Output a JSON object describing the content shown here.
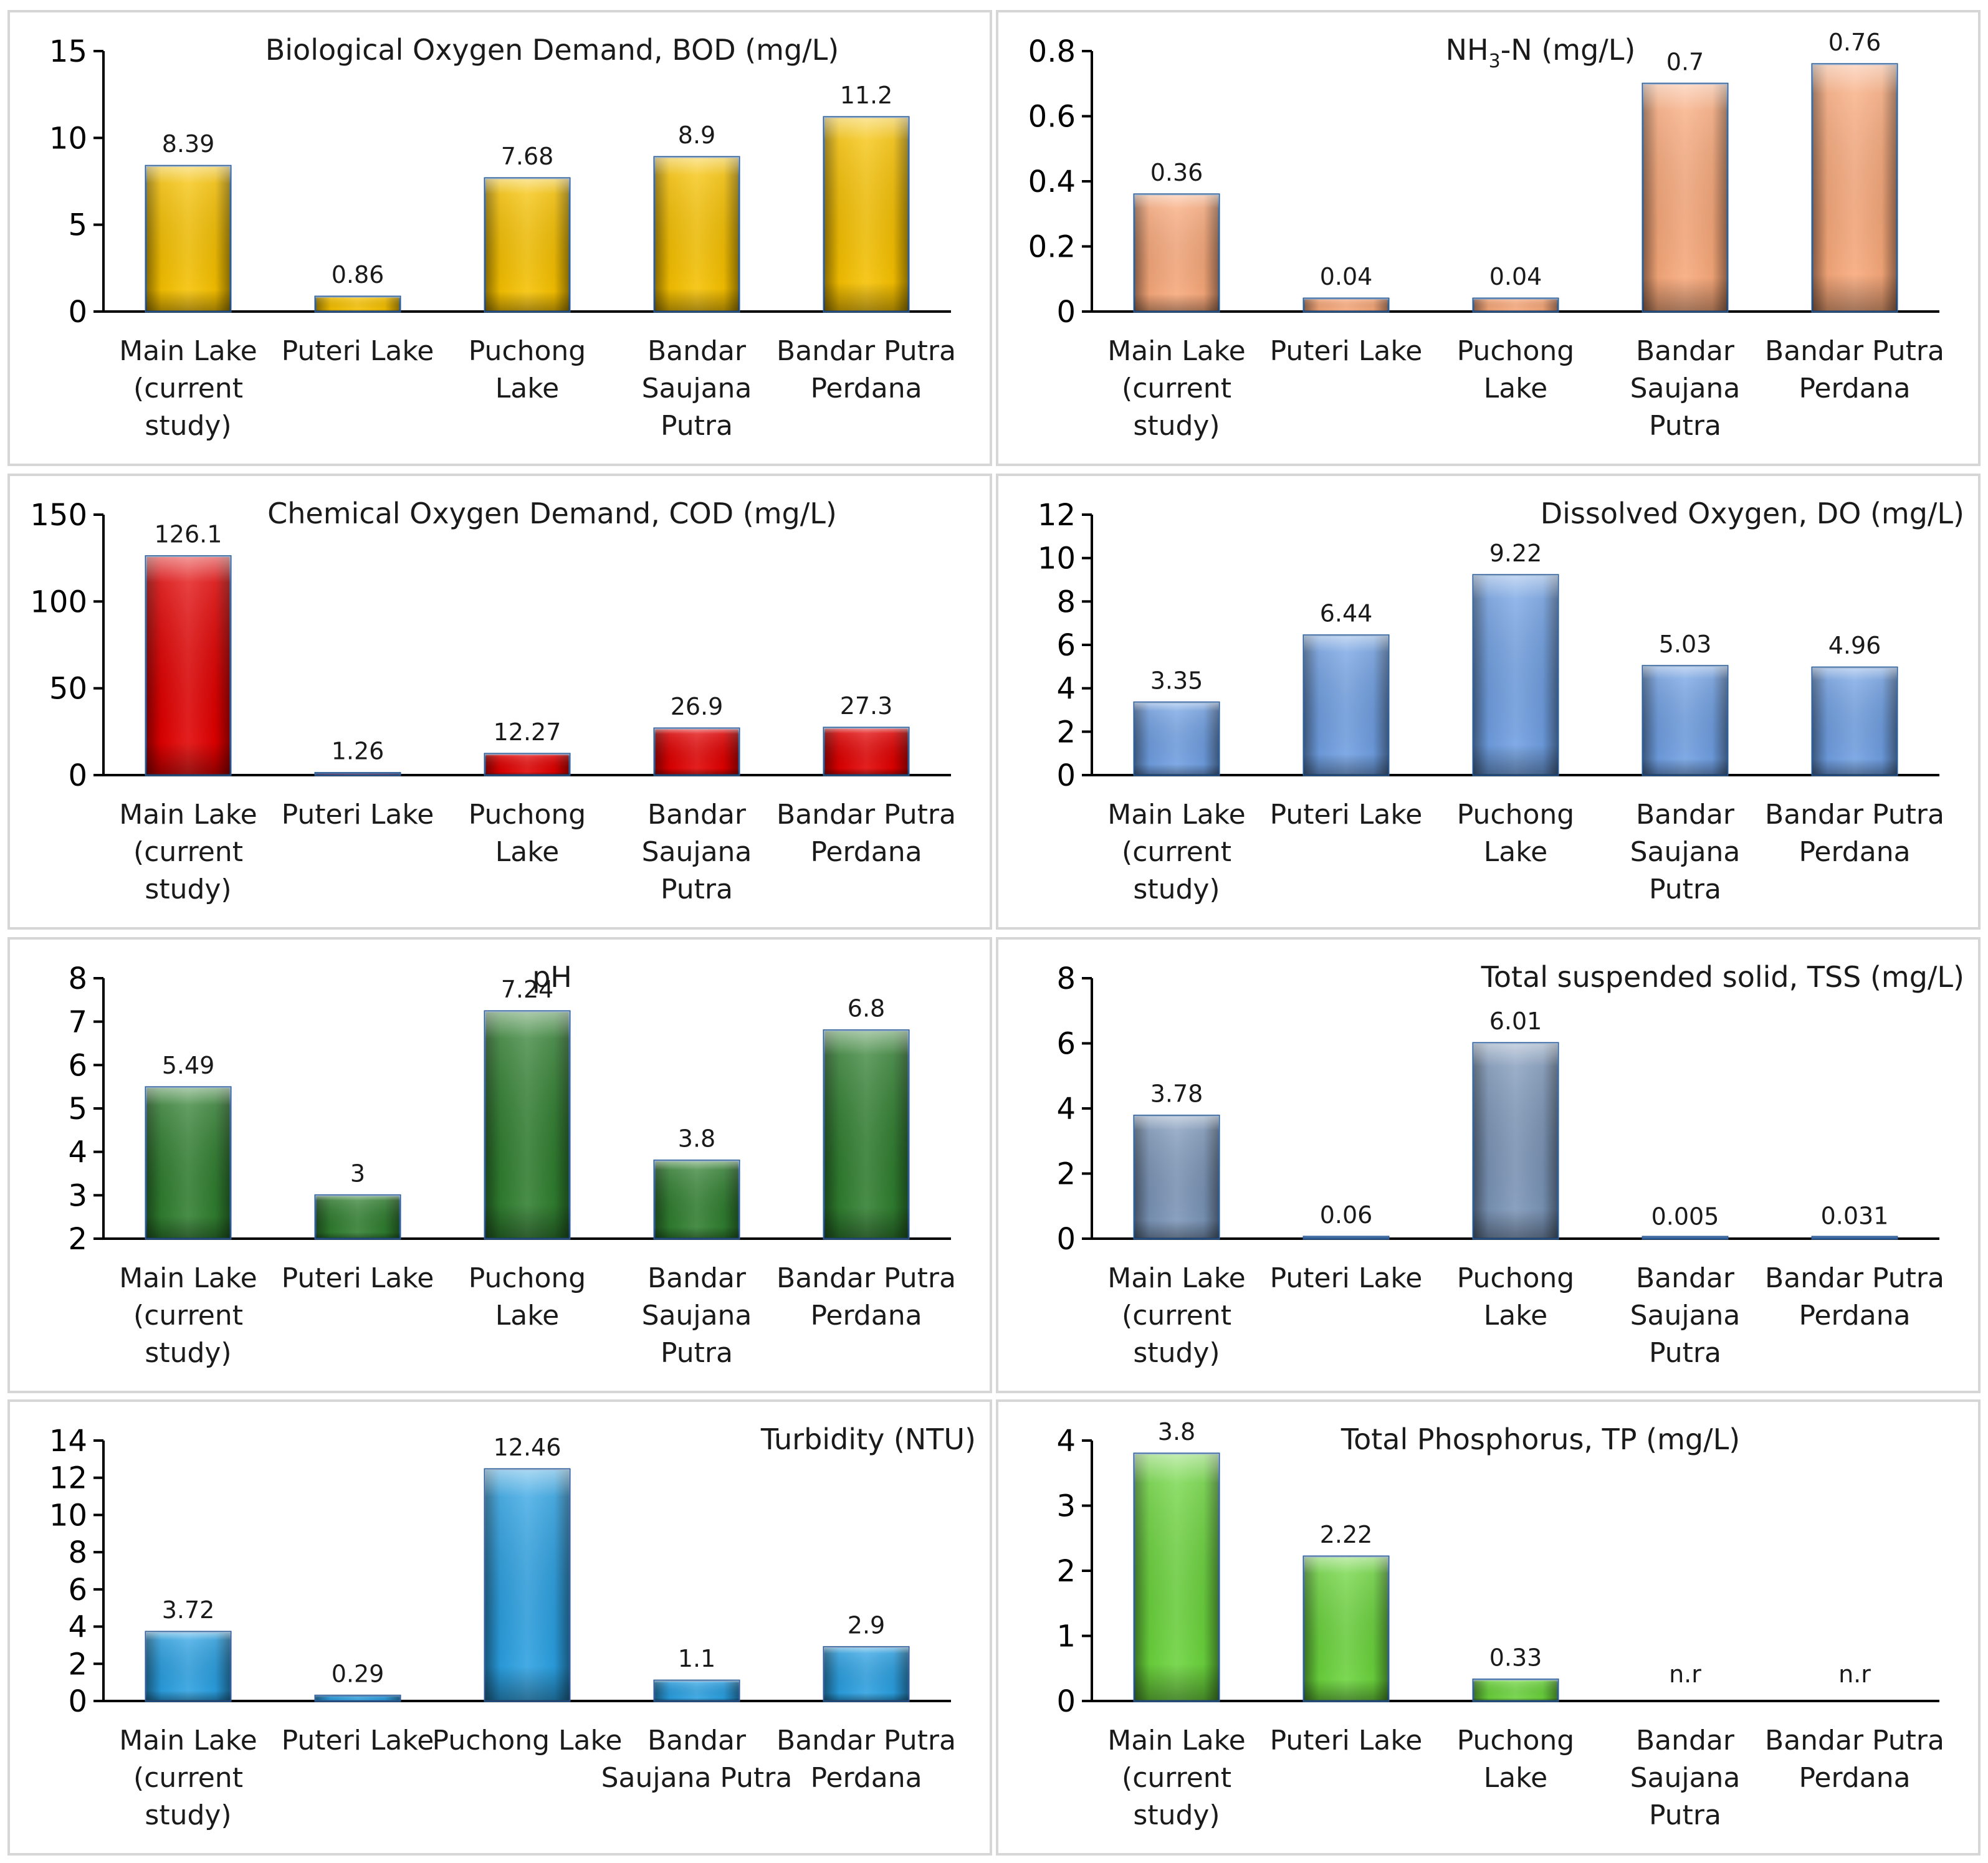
{
  "chart_data": [
    {
      "type": "bar",
      "title": "Biological  Oxygen  Demand,  BOD (mg/L)",
      "categories": [
        "Main Lake\n(current\nstudy)",
        "Puteri Lake",
        "Puchong\nLake",
        "Bandar\nSaujana\nPutra",
        "Bandar Putra\nPerdana"
      ],
      "values": [
        8.39,
        0.86,
        7.68,
        8.9,
        11.2
      ],
      "value_labels": [
        "8.39",
        "0.86",
        "7.68",
        "8.9",
        "11.2"
      ],
      "ylim": [
        0,
        15
      ],
      "yticks": [
        "0",
        "5",
        "10",
        "15"
      ],
      "color": "#f5c000",
      "title_align": "center"
    },
    {
      "type": "bar",
      "title": "NH3-N  (mg/L)",
      "title_parts": [
        "NH",
        "3",
        "-N  (mg/L)"
      ],
      "categories": [
        "Main Lake\n(current\nstudy)",
        "Puteri Lake",
        "Puchong\nLake",
        "Bandar\nSaujana\nPutra",
        "Bandar Putra\nPerdana"
      ],
      "values": [
        0.36,
        0.04,
        0.04,
        0.7,
        0.76
      ],
      "value_labels": [
        "0.36",
        "0.04",
        "0.04",
        "0.7",
        "0.76"
      ],
      "ylim": [
        0,
        0.8
      ],
      "yticks": [
        "0",
        "0.2",
        "0.4",
        "0.6",
        "0.8"
      ],
      "color": "#f7a87a",
      "title_align": "center"
    },
    {
      "type": "bar",
      "title": "Chemical  Oxygen  Demand,  COD (mg/L)",
      "categories": [
        "Main Lake\n(current\nstudy)",
        "Puteri Lake",
        "Puchong\nLake",
        "Bandar\nSaujana\nPutra",
        "Bandar Putra\nPerdana"
      ],
      "values": [
        126.1,
        1.26,
        12.27,
        26.9,
        27.3
      ],
      "value_labels": [
        "126.1",
        "1.26",
        "12.27",
        "26.9",
        "27.3"
      ],
      "ylim": [
        0,
        150
      ],
      "yticks": [
        "0",
        "50",
        "100",
        "150"
      ],
      "color": "#e00000",
      "title_align": "center"
    },
    {
      "type": "bar",
      "title": "Dissolved  Oxygen,  DO (mg/L)",
      "categories": [
        "Main Lake\n(current\nstudy)",
        "Puteri Lake",
        "Puchong\nLake",
        "Bandar\nSaujana\nPutra",
        "Bandar Putra\nPerdana"
      ],
      "values": [
        3.35,
        6.44,
        9.22,
        5.03,
        4.96
      ],
      "value_labels": [
        "3.35",
        "6.44",
        "9.22",
        "5.03",
        "4.96"
      ],
      "ylim": [
        0,
        12
      ],
      "yticks": [
        "0",
        "2",
        "4",
        "6",
        "8",
        "10",
        "12"
      ],
      "color": "#6f9ee0",
      "title_align": "right"
    },
    {
      "type": "bar",
      "title": "pH",
      "categories": [
        "Main Lake\n(current\nstudy)",
        "Puteri Lake",
        "Puchong\nLake",
        "Bandar\nSaujana\nPutra",
        "Bandar Putra\nPerdana"
      ],
      "values": [
        5.49,
        3,
        7.24,
        3.8,
        6.8
      ],
      "value_labels": [
        "5.49",
        "3",
        "7.24",
        "3.8",
        "6.8"
      ],
      "ylim": [
        2,
        8
      ],
      "yticks": [
        "2",
        "3",
        "4",
        "5",
        "6",
        "7",
        "8"
      ],
      "color": "#2f7d2f",
      "title_align": "center"
    },
    {
      "type": "bar",
      "title": "Total  suspended  solid,  TSS (mg/L)",
      "categories": [
        "Main Lake\n(current\nstudy)",
        "Puteri Lake",
        "Puchong\nLake",
        "Bandar\nSaujana\nPutra",
        "Bandar Putra\nPerdana"
      ],
      "values": [
        3.78,
        0.06,
        6.01,
        0.005,
        0.031
      ],
      "value_labels": [
        "3.78",
        "0.06",
        "6.01",
        "0.005",
        "0.031"
      ],
      "ylim": [
        0,
        8
      ],
      "yticks": [
        "0",
        "2",
        "4",
        "6",
        "8"
      ],
      "color": "#7a94b6",
      "title_align": "right"
    },
    {
      "type": "bar",
      "title": "Turbidity  (NTU)",
      "categories": [
        "Main Lake\n(current\nstudy)",
        "Puteri Lake",
        "Puchong Lake",
        "Bandar\nSaujana Putra",
        "Bandar Putra\nPerdana"
      ],
      "values": [
        3.72,
        0.29,
        12.46,
        1.1,
        2.9
      ],
      "value_labels": [
        "3.72",
        "0.29",
        "12.46",
        "1.1",
        "2.9"
      ],
      "ylim": [
        0,
        14
      ],
      "yticks": [
        "0",
        "2",
        "4",
        "6",
        "8",
        "10",
        "12",
        "14"
      ],
      "color": "#2a9fe0",
      "title_align": "right"
    },
    {
      "type": "bar",
      "title": "Total  Phosphorus,  TP (mg/L)",
      "categories": [
        "Main Lake\n(current\nstudy)",
        "Puteri Lake",
        "Puchong\nLake",
        "Bandar\nSaujana\nPutra",
        "Bandar Putra\nPerdana"
      ],
      "values": [
        3.8,
        2.22,
        0.33,
        null,
        null
      ],
      "value_labels": [
        "3.8",
        "2.22",
        "0.33",
        "n.r",
        "n.r"
      ],
      "ylim": [
        0,
        4
      ],
      "yticks": [
        "0",
        "1",
        "2",
        "3",
        "4"
      ],
      "color": "#6ad33c",
      "title_align": "center"
    }
  ]
}
